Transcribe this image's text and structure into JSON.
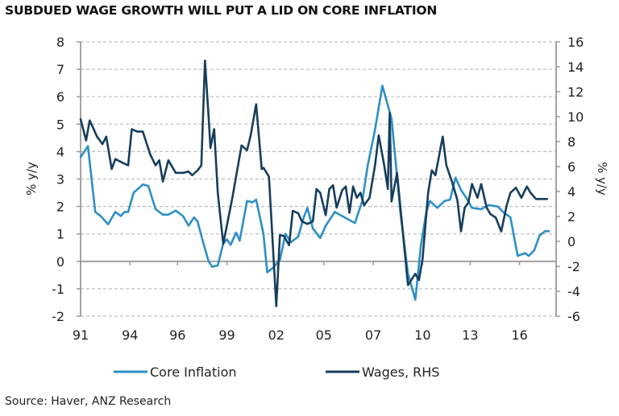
{
  "title": "SUBDUED WAGE GROWTH WILL PUT A LID ON CORE INFLATION",
  "source": "Source: Haver, ANZ Research",
  "colors": {
    "core_inflation": "#2d8fc6",
    "wages": "#163e5c",
    "grid": "#bdbdbd",
    "axis": "#9a9a9a"
  },
  "chart_data": {
    "type": "line",
    "title": "SUBDUED WAGE GROWTH WILL PUT A LID ON CORE INFLATION",
    "xlabel": "",
    "ylabel": "% y/y",
    "y2label": "% y/y",
    "xlim": [
      1991,
      2017
    ],
    "ylim": [
      -2,
      8
    ],
    "y2lim": [
      -6,
      16
    ],
    "yticks": [
      -2,
      -1,
      0,
      1,
      2,
      3,
      4,
      5,
      6,
      7,
      8
    ],
    "y2ticks": [
      -6,
      -4,
      -2,
      0,
      2,
      4,
      6,
      8,
      10,
      12,
      14,
      16
    ],
    "x_tick_labels": [
      "91",
      "94",
      "96",
      "99",
      "02",
      "05",
      "07",
      "10",
      "13",
      "16"
    ],
    "x_tick_positions": [
      1991.0,
      1993.7,
      1996.3,
      1999.0,
      2001.7,
      2004.3,
      2007.0,
      2009.7,
      2012.3,
      2015.0
    ],
    "grid": "horizontal dashed",
    "legend_position": "bottom",
    "series": [
      {
        "name": "Core Inflation",
        "axis": "left",
        "x": [
          1991.0,
          1991.4,
          1991.8,
          1992.1,
          1992.5,
          1992.9,
          1993.2,
          1993.4,
          1993.6,
          1993.9,
          1994.4,
          1994.7,
          1995.1,
          1995.5,
          1995.8,
          1996.2,
          1996.6,
          1996.9,
          1997.2,
          1997.4,
          1997.7,
          1998.0,
          1998.2,
          1998.5,
          1998.8,
          1999.0,
          1999.2,
          1999.5,
          1999.7,
          2000.1,
          2000.4,
          2000.6,
          2001.0,
          2001.2,
          2001.5,
          2001.9,
          2002.2,
          2002.5,
          2002.9,
          2003.2,
          2003.4,
          2003.7,
          2004.1,
          2004.4,
          2004.9,
          2005.3,
          2005.7,
          2006.0,
          2006.4,
          2006.7,
          2007.1,
          2007.5,
          2008.0,
          2008.5,
          2008.9,
          2009.3,
          2009.6,
          2009.9,
          2010.1,
          2010.5,
          2010.9,
          2011.2,
          2011.5,
          2011.8,
          2012.1,
          2012.4,
          2012.9,
          2013.3,
          2013.8,
          2014.1,
          2014.5,
          2014.9,
          2015.3,
          2015.5,
          2015.8,
          2016.1,
          2016.4,
          2016.6
        ],
        "values": [
          3.8,
          4.2,
          1.8,
          1.65,
          1.35,
          1.8,
          1.65,
          1.8,
          1.8,
          2.5,
          2.8,
          2.75,
          1.9,
          1.7,
          1.7,
          1.85,
          1.65,
          1.3,
          1.6,
          1.45,
          0.7,
          0.0,
          -0.2,
          -0.15,
          0.65,
          0.8,
          0.6,
          1.05,
          0.75,
          2.2,
          2.15,
          2.25,
          1.0,
          -0.4,
          -0.25,
          0.05,
          1.0,
          0.7,
          0.9,
          1.6,
          1.95,
          1.2,
          0.85,
          1.3,
          1.8,
          1.65,
          1.5,
          1.4,
          2.2,
          3.5,
          4.8,
          6.4,
          5.2,
          1.7,
          -0.45,
          -1.4,
          0.55,
          1.8,
          2.2,
          1.95,
          2.2,
          2.25,
          3.05,
          2.6,
          2.3,
          1.95,
          1.9,
          2.05,
          2.0,
          1.8,
          1.6,
          0.2,
          0.3,
          0.2,
          0.4,
          0.95,
          1.1,
          1.1
        ]
      },
      {
        "name": "Wages, RHS",
        "axis": "right",
        "x": [
          1991.0,
          1991.3,
          1991.5,
          1991.9,
          1992.2,
          1992.4,
          1992.7,
          1992.9,
          1993.3,
          1993.6,
          1993.8,
          1994.1,
          1994.4,
          1994.8,
          1995.1,
          1995.3,
          1995.5,
          1995.8,
          1996.2,
          1996.6,
          1996.9,
          1997.1,
          1997.4,
          1997.6,
          1997.8,
          1998.0,
          1998.1,
          1998.3,
          1998.5,
          1998.8,
          1999.3,
          1999.8,
          2000.1,
          2000.3,
          2000.6,
          2000.9,
          2001.0,
          2001.3,
          2001.7,
          2001.9,
          2002.1,
          2002.4,
          2002.6,
          2002.9,
          2003.1,
          2003.4,
          2003.7,
          2003.9,
          2004.1,
          2004.4,
          2004.6,
          2004.8,
          2005.0,
          2005.3,
          2005.5,
          2005.7,
          2005.9,
          2006.1,
          2006.3,
          2006.5,
          2006.8,
          2007.1,
          2007.3,
          2007.6,
          2007.8,
          2007.9,
          2008.0,
          2008.3,
          2008.6,
          2008.9,
          2009.3,
          2009.5,
          2009.7,
          2010.0,
          2010.2,
          2010.4,
          2010.8,
          2011.0,
          2011.3,
          2011.6,
          2011.8,
          2012.0,
          2012.2,
          2012.4,
          2012.7,
          2012.9,
          2013.2,
          2013.4,
          2013.7,
          2014.0,
          2014.3,
          2014.5,
          2014.8,
          2015.1,
          2015.4,
          2015.6,
          2015.9,
          2016.2,
          2016.5
        ],
        "values": [
          9.8,
          8.1,
          9.7,
          8.4,
          7.8,
          8.4,
          5.8,
          6.6,
          6.3,
          6.1,
          9.0,
          8.8,
          8.8,
          7.0,
          6.1,
          6.5,
          4.8,
          6.5,
          5.5,
          5.5,
          5.6,
          5.3,
          5.7,
          6.1,
          14.5,
          10.0,
          7.5,
          9.0,
          3.9,
          -0.2,
          3.5,
          7.7,
          7.3,
          8.5,
          11.0,
          5.8,
          5.9,
          5.2,
          -5.2,
          0.5,
          0.45,
          -0.3,
          2.45,
          2.25,
          1.6,
          1.4,
          1.6,
          4.2,
          3.9,
          2.1,
          4.2,
          4.5,
          2.7,
          4.1,
          4.4,
          2.3,
          4.4,
          3.5,
          3.9,
          2.9,
          3.5,
          6.1,
          8.5,
          6.1,
          4.2,
          10.3,
          3.2,
          5.5,
          1.0,
          -3.5,
          -2.6,
          -3.1,
          -1.4,
          3.9,
          5.7,
          5.3,
          8.4,
          6.1,
          4.8,
          3.3,
          0.8,
          2.7,
          3.1,
          4.6,
          3.5,
          4.6,
          2.7,
          2.2,
          1.9,
          0.8,
          2.9,
          3.9,
          4.3,
          3.5,
          4.4,
          3.9,
          3.4,
          3.4,
          3.4
        ]
      }
    ]
  },
  "legend": [
    {
      "label": "Core Inflation",
      "series": "core_inflation"
    },
    {
      "label": "Wages, RHS",
      "series": "wages"
    }
  ]
}
